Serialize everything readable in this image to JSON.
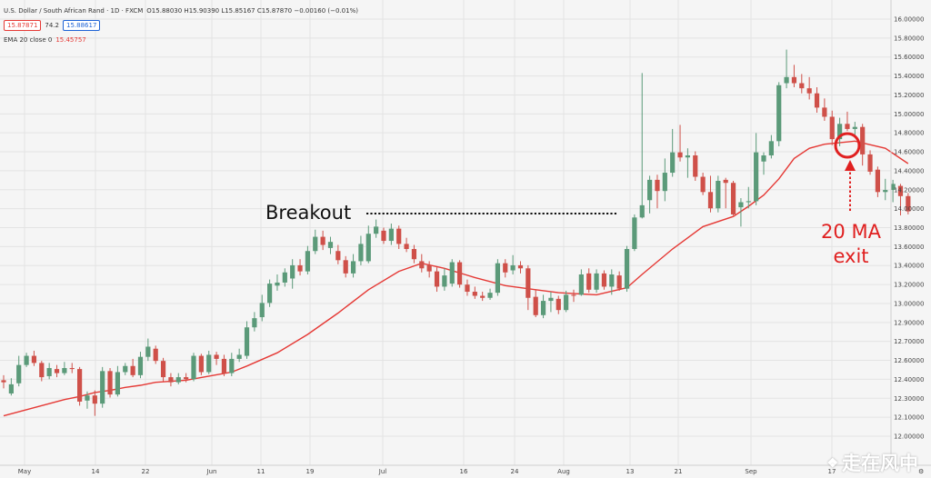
{
  "header": {
    "symbol_line": "U.S. Dollar / South African Rand · 1D · FXCM",
    "ohlc": "O15.88030 H15.90390 L15.85167 C15.87870 −0.00160 (−0.01%)",
    "bid": "15.87871",
    "spread": "74.2",
    "ask": "15.88617",
    "ema_label": "EMA 20 close 0",
    "ema_value": "15.45757"
  },
  "chart_data": {
    "type": "candlestick",
    "ylim": [
      11.9,
      16.0
    ],
    "y_ticks": [
      "16.00000",
      "15.80000",
      "15.60000",
      "15.40000",
      "15.20000",
      "15.00000",
      "14.80000",
      "14.60000",
      "14.40000",
      "14.20000",
      "14.00000",
      "13.80000",
      "13.60000",
      "13.40000",
      "13.20000",
      "13.00000",
      "12.90000",
      "12.70000",
      "12.60000",
      "12.40000",
      "12.30000",
      "12.10000",
      "12.00000"
    ],
    "x_labels": [
      "May",
      "14",
      "22",
      "Jun",
      "11",
      "19",
      "Jul",
      "16",
      "24",
      "Aug",
      "13",
      "21",
      "Sep",
      "17"
    ],
    "candles": [
      [
        12.45,
        12.43,
        12.5,
        12.37
      ],
      [
        12.32,
        12.41,
        12.47,
        12.3
      ],
      [
        12.42,
        12.6,
        12.69,
        12.39
      ],
      [
        12.6,
        12.69,
        12.72,
        12.58
      ],
      [
        12.69,
        12.62,
        12.74,
        12.59
      ],
      [
        12.62,
        12.48,
        12.64,
        12.44
      ],
      [
        12.49,
        12.57,
        12.62,
        12.46
      ],
      [
        12.56,
        12.52,
        12.6,
        12.48
      ],
      [
        12.52,
        12.57,
        12.63,
        12.5
      ],
      [
        12.57,
        12.56,
        12.62,
        12.52
      ],
      [
        12.56,
        12.24,
        12.58,
        12.2
      ],
      [
        12.25,
        12.3,
        12.34,
        12.17
      ],
      [
        12.3,
        12.22,
        12.35,
        12.1
      ],
      [
        12.22,
        12.54,
        12.58,
        12.18
      ],
      [
        12.54,
        12.31,
        12.57,
        12.28
      ],
      [
        12.31,
        12.53,
        12.59,
        12.29
      ],
      [
        12.53,
        12.59,
        12.62,
        12.5
      ],
      [
        12.59,
        12.5,
        12.66,
        12.48
      ],
      [
        12.5,
        12.68,
        12.73,
        12.47
      ],
      [
        12.68,
        12.78,
        12.86,
        12.64
      ],
      [
        12.76,
        12.64,
        12.79,
        12.61
      ],
      [
        12.64,
        12.48,
        12.67,
        12.44
      ],
      [
        12.48,
        12.43,
        12.52,
        12.39
      ],
      [
        12.43,
        12.48,
        12.52,
        12.41
      ],
      [
        12.48,
        12.46,
        12.52,
        12.43
      ],
      [
        12.46,
        12.69,
        12.72,
        12.44
      ],
      [
        12.69,
        12.53,
        12.71,
        12.5
      ],
      [
        12.53,
        12.7,
        12.74,
        12.51
      ],
      [
        12.7,
        12.66,
        12.73,
        12.6
      ],
      [
        12.66,
        12.52,
        12.7,
        12.49
      ],
      [
        12.52,
        12.66,
        12.72,
        12.49
      ],
      [
        12.66,
        12.7,
        12.76,
        12.63
      ],
      [
        12.69,
        12.97,
        13.03,
        12.66
      ],
      [
        12.97,
        13.06,
        13.12,
        12.93
      ],
      [
        13.07,
        13.21,
        13.29,
        13.03
      ],
      [
        13.21,
        13.4,
        13.44,
        13.17
      ],
      [
        13.38,
        13.41,
        13.49,
        13.33
      ],
      [
        13.41,
        13.51,
        13.55,
        13.37
      ],
      [
        13.45,
        13.58,
        13.64,
        13.35
      ],
      [
        13.58,
        13.52,
        13.64,
        13.48
      ],
      [
        13.52,
        13.72,
        13.77,
        13.49
      ],
      [
        13.72,
        13.86,
        13.93,
        13.69
      ],
      [
        13.86,
        13.78,
        13.92,
        13.73
      ],
      [
        13.75,
        13.81,
        13.86,
        13.69
      ],
      [
        13.72,
        13.63,
        13.78,
        13.59
      ],
      [
        13.63,
        13.5,
        13.67,
        13.46
      ],
      [
        13.5,
        13.62,
        13.69,
        13.46
      ],
      [
        13.62,
        13.79,
        13.87,
        13.58
      ],
      [
        13.62,
        13.89,
        13.97,
        13.6
      ],
      [
        13.89,
        13.96,
        14.03,
        13.85
      ],
      [
        13.92,
        13.82,
        13.95,
        13.79
      ],
      [
        13.82,
        13.94,
        13.99,
        13.78
      ],
      [
        13.94,
        13.79,
        13.97,
        13.74
      ],
      [
        13.79,
        13.74,
        13.85,
        13.71
      ],
      [
        13.74,
        13.64,
        13.78,
        13.6
      ],
      [
        13.62,
        13.55,
        13.69,
        13.51
      ],
      [
        13.58,
        13.52,
        13.62,
        13.46
      ],
      [
        13.52,
        13.37,
        13.56,
        13.32
      ],
      [
        13.37,
        13.48,
        13.55,
        13.33
      ],
      [
        13.4,
        13.61,
        13.64,
        13.37
      ],
      [
        13.61,
        13.39,
        13.63,
        13.36
      ],
      [
        13.39,
        13.32,
        13.44,
        13.28
      ],
      [
        13.32,
        13.28,
        13.37,
        13.25
      ],
      [
        13.28,
        13.26,
        13.32,
        13.23
      ],
      [
        13.26,
        13.31,
        13.35,
        13.24
      ],
      [
        13.31,
        13.6,
        13.64,
        13.28
      ],
      [
        13.6,
        13.51,
        13.64,
        13.46
      ],
      [
        13.53,
        13.58,
        13.68,
        13.49
      ],
      [
        13.58,
        13.55,
        13.62,
        13.5
      ],
      [
        13.55,
        13.26,
        13.58,
        13.14
      ],
      [
        13.27,
        13.09,
        13.34,
        13.07
      ],
      [
        13.09,
        13.23,
        13.29,
        13.06
      ],
      [
        13.23,
        13.26,
        13.32,
        13.12
      ],
      [
        13.25,
        13.14,
        13.28,
        13.1
      ],
      [
        13.14,
        13.29,
        13.33,
        13.12
      ],
      [
        13.29,
        13.28,
        13.34,
        13.22
      ],
      [
        13.29,
        13.49,
        13.54,
        13.28
      ],
      [
        13.5,
        13.34,
        13.55,
        13.31
      ],
      [
        13.34,
        13.5,
        13.54,
        13.31
      ],
      [
        13.5,
        13.37,
        13.53,
        13.34
      ],
      [
        13.37,
        13.49,
        13.54,
        13.29
      ],
      [
        13.48,
        13.35,
        13.52,
        13.33
      ],
      [
        13.35,
        13.74,
        13.77,
        13.32
      ],
      [
        13.74,
        14.05,
        14.08,
        13.72
      ],
      [
        14.05,
        14.17,
        15.47,
        14.04
      ],
      [
        14.22,
        14.42,
        14.46,
        14.09
      ],
      [
        14.42,
        14.31,
        14.47,
        14.14
      ],
      [
        14.31,
        14.49,
        14.63,
        14.21
      ],
      [
        14.49,
        14.69,
        14.92,
        14.45
      ],
      [
        14.69,
        14.64,
        14.96,
        14.6
      ],
      [
        14.64,
        14.66,
        14.73,
        14.44
      ],
      [
        14.66,
        14.45,
        14.7,
        14.41
      ],
      [
        14.45,
        14.3,
        14.49,
        14.27
      ],
      [
        14.3,
        14.14,
        14.46,
        14.1
      ],
      [
        14.14,
        14.41,
        14.46,
        14.1
      ],
      [
        14.42,
        14.39,
        14.44,
        14.14
      ],
      [
        14.39,
        14.08,
        14.41,
        14.07
      ],
      [
        14.15,
        14.2,
        14.24,
        13.96
      ],
      [
        14.2,
        14.21,
        14.35,
        14.14
      ],
      [
        14.21,
        14.69,
        14.88,
        14.17
      ],
      [
        14.6,
        14.66,
        14.69,
        14.47
      ],
      [
        14.66,
        14.8,
        14.86,
        14.63
      ],
      [
        14.8,
        15.35,
        15.38,
        14.75
      ],
      [
        15.37,
        15.43,
        15.7,
        15.32
      ],
      [
        15.43,
        15.37,
        15.55,
        15.33
      ],
      [
        15.37,
        15.32,
        15.46,
        15.27
      ],
      [
        15.32,
        15.27,
        15.43,
        15.21
      ],
      [
        15.27,
        15.13,
        15.33,
        15.08
      ],
      [
        15.13,
        15.04,
        15.22,
        15.0
      ],
      [
        15.04,
        14.82,
        15.1,
        14.76
      ],
      [
        14.82,
        14.97,
        15.03,
        14.75
      ],
      [
        14.97,
        14.92,
        15.09,
        14.9
      ],
      [
        14.92,
        14.94,
        14.99,
        14.86
      ],
      [
        14.94,
        14.67,
        14.97,
        14.56
      ],
      [
        14.67,
        14.5,
        14.71,
        14.47
      ],
      [
        14.52,
        14.3,
        14.55,
        14.25
      ],
      [
        14.3,
        14.32,
        14.43,
        14.22
      ],
      [
        14.32,
        14.38,
        14.42,
        14.2
      ],
      [
        14.36,
        14.26,
        14.38,
        14.07
      ],
      [
        14.26,
        14.11,
        14.29,
        14.08
      ]
    ],
    "ema20": [
      [
        0,
        12.1
      ],
      [
        8,
        12.26
      ],
      [
        10,
        12.29
      ],
      [
        12,
        12.33
      ],
      [
        14,
        12.35
      ],
      [
        16,
        12.38
      ],
      [
        18,
        12.4
      ],
      [
        20,
        12.43
      ],
      [
        24,
        12.45
      ],
      [
        30,
        12.53
      ],
      [
        32,
        12.59
      ],
      [
        36,
        12.72
      ],
      [
        40,
        12.9
      ],
      [
        44,
        13.11
      ],
      [
        48,
        13.34
      ],
      [
        52,
        13.52
      ],
      [
        55,
        13.6
      ],
      [
        58,
        13.55
      ],
      [
        62,
        13.46
      ],
      [
        66,
        13.38
      ],
      [
        70,
        13.34
      ],
      [
        73,
        13.31
      ],
      [
        78,
        13.29
      ],
      [
        82,
        13.36
      ],
      [
        84,
        13.49
      ],
      [
        88,
        13.74
      ],
      [
        92,
        13.96
      ],
      [
        96,
        14.06
      ],
      [
        98,
        14.16
      ],
      [
        100,
        14.27
      ],
      [
        102,
        14.43
      ],
      [
        104,
        14.63
      ],
      [
        106,
        14.73
      ],
      [
        108,
        14.77
      ],
      [
        112,
        14.8
      ],
      [
        116,
        14.73
      ],
      [
        119,
        14.58
      ]
    ]
  },
  "annotations": {
    "breakout_label": "Breakout",
    "exit_line1": "20 MA",
    "exit_line2": "exit"
  },
  "colors": {
    "up": "#5b9a79",
    "down": "#cf5049",
    "ema": "#e53935",
    "annotation_red": "#e02020"
  },
  "watermark": {
    "text": "走在风中"
  }
}
